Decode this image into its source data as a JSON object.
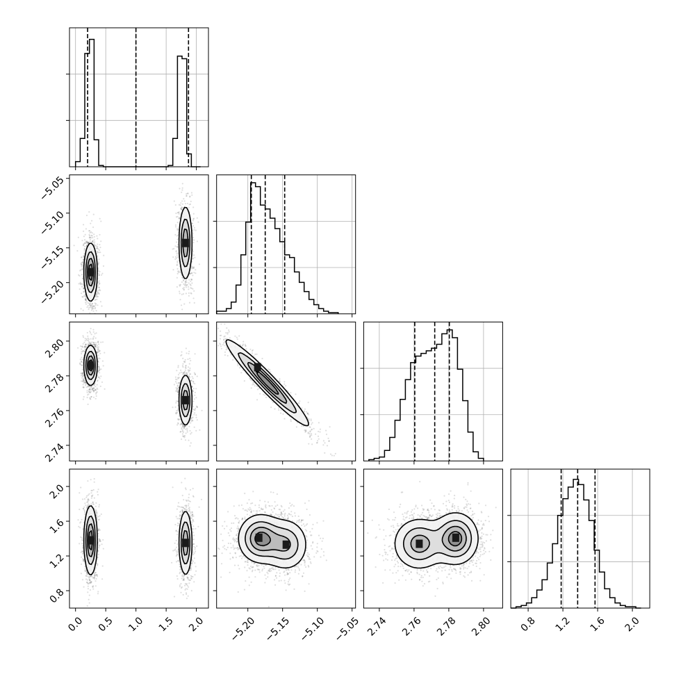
{
  "chart_data": {
    "type": "corner",
    "grid": true,
    "parameters": [
      {
        "range": [
          -0.1,
          2.2
        ],
        "ticks": [
          0.0,
          0.5,
          1.0,
          1.5,
          2.0
        ],
        "tick_labels": [
          "0.0",
          "0.5",
          "1.0",
          "1.5",
          "2.0"
        ],
        "quantiles": [
          0.2,
          1.0,
          1.87
        ],
        "histogram": {
          "edges": [
            0.0,
            0.077,
            0.153,
            0.23,
            0.307,
            0.383,
            0.46,
            0.537,
            0.613,
            0.69,
            0.767,
            0.843,
            0.92,
            0.997,
            1.073,
            1.15,
            1.227,
            1.303,
            1.38,
            1.457,
            1.533,
            1.61,
            1.687,
            1.763,
            1.84,
            1.917,
            1.993,
            2.07
          ],
          "counts": [
            4,
            22,
            88,
            99,
            21,
            1,
            0,
            0,
            0,
            0,
            0,
            0,
            0,
            0,
            0,
            0,
            0,
            0,
            0,
            0,
            1,
            22,
            86,
            84,
            10,
            0,
            0
          ]
        },
        "hist_ylim": [
          0,
          108
        ]
      },
      {
        "range": [
          -5.245,
          -5.045
        ],
        "ticks": [
          -5.2,
          -5.15,
          -5.1,
          -5.05
        ],
        "tick_labels": [
          "−5.20",
          "−5.15",
          "−5.10",
          "−5.05"
        ],
        "quantiles": [
          -5.195,
          -5.175,
          -5.147
        ],
        "histogram": {
          "edges": [
            -5.245,
            -5.238,
            -5.231,
            -5.224,
            -5.217,
            -5.21,
            -5.203,
            -5.196,
            -5.189,
            -5.182,
            -5.175,
            -5.168,
            -5.161,
            -5.154,
            -5.147,
            -5.14,
            -5.133,
            -5.126,
            -5.119,
            -5.112,
            -5.105,
            -5.098,
            -5.091,
            -5.084,
            -5.077,
            -5.07
          ],
          "counts": [
            2,
            2,
            4,
            9,
            22,
            45,
            70,
            100,
            97,
            83,
            80,
            73,
            65,
            55,
            45,
            43,
            32,
            24,
            17,
            11,
            7,
            4,
            2,
            1,
            1
          ]
        },
        "hist_ylim": [
          0,
          106
        ]
      },
      {
        "range": [
          2.731,
          2.811
        ],
        "ticks": [
          2.74,
          2.76,
          2.78,
          2.8
        ],
        "tick_labels": [
          "2.74",
          "2.76",
          "2.78",
          "2.80"
        ],
        "quantiles": [
          2.7604,
          2.7719,
          2.7803
        ],
        "histogram": {
          "edges": [
            2.734,
            2.737,
            2.74,
            2.743,
            2.746,
            2.749,
            2.752,
            2.755,
            2.758,
            2.761,
            2.764,
            2.767,
            2.77,
            2.773,
            2.776,
            2.779,
            2.782,
            2.785,
            2.788,
            2.791,
            2.794,
            2.797,
            2.8
          ],
          "counts": [
            1,
            2,
            3,
            8,
            18,
            31,
            47,
            62,
            75,
            80,
            82,
            84,
            86,
            89,
            97,
            100,
            94,
            70,
            46,
            22,
            7,
            2
          ]
        },
        "hist_ylim": [
          0,
          106
        ]
      },
      {
        "range": [
          0.6,
          2.2
        ],
        "ticks": [
          0.8,
          1.2,
          1.6,
          2.0
        ],
        "tick_labels": [
          "0.8",
          "1.2",
          "1.6",
          "2.0"
        ],
        "quantiles": [
          1.18,
          1.37,
          1.57
        ],
        "histogram": {
          "edges": [
            0.6,
            0.66,
            0.72,
            0.78,
            0.84,
            0.9,
            0.96,
            1.02,
            1.08,
            1.14,
            1.2,
            1.26,
            1.32,
            1.38,
            1.44,
            1.5,
            1.56,
            1.62,
            1.68,
            1.74,
            1.8,
            1.86,
            1.92,
            1.98,
            2.04,
            2.1
          ],
          "counts": [
            0,
            1,
            2,
            4,
            8,
            14,
            22,
            35,
            50,
            72,
            85,
            94,
            100,
            96,
            84,
            68,
            45,
            28,
            15,
            8,
            4,
            2,
            1,
            1,
            0
          ]
        },
        "hist_ylim": [
          0,
          108
        ]
      }
    ],
    "pair_plots": [
      {
        "row": 1,
        "col": 0,
        "modes": [
          {
            "cx": 0.25,
            "cy": -5.185,
            "sx": 0.055,
            "sy": 0.021,
            "rho": 0.0,
            "w": 1.0,
            "peak": [
              0.25,
              -5.185
            ]
          },
          {
            "cx": 1.82,
            "cy": -5.143,
            "sx": 0.055,
            "sy": 0.027,
            "rho": 0.0,
            "w": 0.85,
            "peak": [
              1.82,
              -5.143
            ]
          }
        ]
      },
      {
        "row": 2,
        "col": 0,
        "modes": [
          {
            "cx": 0.25,
            "cy": 2.786,
            "sx": 0.055,
            "sy": 0.0058,
            "rho": 0.0,
            "w": 1.0,
            "peak": [
              0.25,
              2.786
            ]
          },
          {
            "cx": 1.82,
            "cy": 2.766,
            "sx": 0.055,
            "sy": 0.0075,
            "rho": 0.0,
            "w": 0.85,
            "peak": [
              1.82,
              2.766
            ]
          }
        ]
      },
      {
        "row": 2,
        "col": 1,
        "modes": [
          {
            "cx": -5.172,
            "cy": 2.776,
            "sx": 0.03,
            "sy": 0.0125,
            "rho": -0.96,
            "w": 1.0,
            "peak": [
              -5.186,
              2.785
            ]
          }
        ]
      },
      {
        "row": 3,
        "col": 0,
        "modes": [
          {
            "cx": 0.25,
            "cy": 1.38,
            "sx": 0.055,
            "sy": 0.2,
            "rho": 0.0,
            "w": 1.0,
            "peak": [
              0.25,
              1.38
            ]
          },
          {
            "cx": 1.82,
            "cy": 1.35,
            "sx": 0.055,
            "sy": 0.19,
            "rho": 0.0,
            "w": 0.85,
            "peak": [
              1.82,
              1.35
            ]
          }
        ]
      },
      {
        "row": 3,
        "col": 1,
        "modes": [
          {
            "cx": -5.182,
            "cy": 1.4,
            "sx": 0.016,
            "sy": 0.14,
            "rho": 0.0,
            "w": 1.0,
            "peak": [
              -5.184,
              1.41
            ]
          },
          {
            "cx": -5.145,
            "cy": 1.33,
            "sx": 0.016,
            "sy": 0.15,
            "rho": 0.0,
            "w": 0.7,
            "peak": [
              -5.145,
              1.33
            ]
          }
        ]
      },
      {
        "row": 3,
        "col": 2,
        "modes": [
          {
            "cx": 2.784,
            "cy": 1.4,
            "sx": 0.0065,
            "sy": 0.15,
            "rho": 0.0,
            "w": 1.0,
            "peak": [
              2.784,
              1.41
            ]
          },
          {
            "cx": 2.763,
            "cy": 1.34,
            "sx": 0.0075,
            "sy": 0.15,
            "rho": 0.0,
            "w": 0.8,
            "peak": [
              2.763,
              1.34
            ]
          }
        ]
      }
    ]
  }
}
